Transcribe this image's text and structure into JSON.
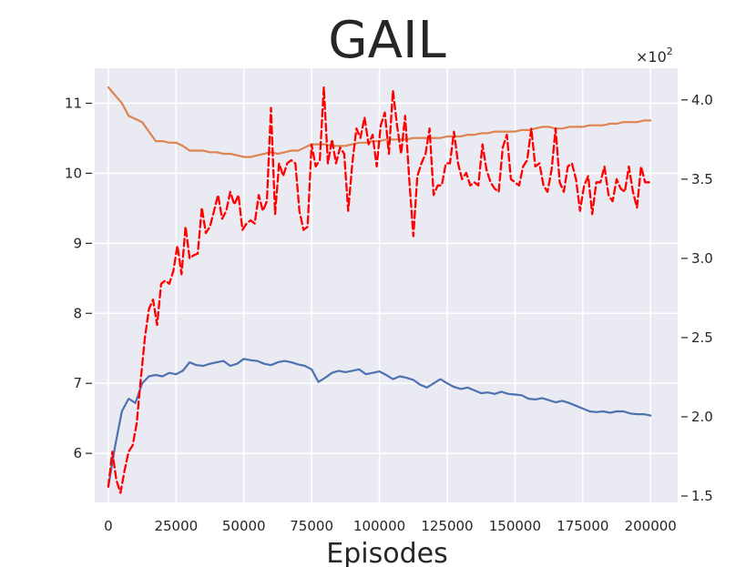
{
  "chart_data": {
    "type": "line",
    "title": "GAIL",
    "xlabel": "Episodes",
    "ylabel": "",
    "grid": true,
    "xlim": [
      -5000,
      210000
    ],
    "ylim": [
      5.3,
      11.5
    ],
    "y2lim": [
      1.46,
      4.2
    ],
    "xticks": [
      0,
      25000,
      50000,
      75000,
      100000,
      125000,
      150000,
      175000,
      200000
    ],
    "xtick_labels": [
      "0",
      "25000",
      "50000",
      "75000",
      "100000",
      "125000",
      "150000",
      "175000",
      "200000"
    ],
    "yticks": [
      6,
      7,
      8,
      9,
      10,
      11
    ],
    "ytick_labels": [
      "6",
      "7",
      "8",
      "9",
      "10",
      "11"
    ],
    "y2ticks": [
      1.5,
      2.0,
      2.5,
      3.0,
      3.5,
      4.0
    ],
    "y2tick_labels": [
      "1.5",
      "2.0",
      "2.5",
      "3.0",
      "3.5",
      "4.0"
    ],
    "y2_multiplier": {
      "base": "×10",
      "exponent": "2"
    },
    "colors": {
      "background": "#eaeaf2",
      "grid": "#ffffff",
      "blue": "#4c72b0",
      "orange": "#dd8452",
      "red": "#ff0000"
    },
    "series": [
      {
        "axis": "left",
        "color": "#4c72b0",
        "style": "solid",
        "x": [
          0,
          2500,
          5000,
          7500,
          10000,
          12500,
          15000,
          17500,
          20000,
          22500,
          25000,
          27500,
          30000,
          32500,
          35000,
          37500,
          40000,
          42500,
          45000,
          47500,
          50000,
          52500,
          55000,
          57500,
          60000,
          62500,
          65000,
          67500,
          70000,
          72500,
          75000,
          77500,
          80000,
          82500,
          85000,
          87500,
          90000,
          92500,
          95000,
          97500,
          100000,
          102500,
          105000,
          107500,
          110000,
          112500,
          115000,
          117500,
          120000,
          122500,
          125000,
          127500,
          130000,
          132500,
          135000,
          137500,
          140000,
          142500,
          145000,
          147500,
          150000,
          152500,
          155000,
          157500,
          160000,
          162500,
          165000,
          167500,
          170000,
          172500,
          175000,
          177500,
          180000,
          182500,
          185000,
          187500,
          190000,
          192500,
          195000,
          197500,
          200000
        ],
        "values": [
          5.52,
          6.1,
          6.6,
          6.78,
          6.72,
          7.0,
          7.1,
          7.12,
          7.1,
          7.15,
          7.13,
          7.18,
          7.3,
          7.26,
          7.25,
          7.28,
          7.3,
          7.32,
          7.25,
          7.28,
          7.35,
          7.33,
          7.32,
          7.28,
          7.26,
          7.3,
          7.32,
          7.3,
          7.27,
          7.25,
          7.2,
          7.02,
          7.08,
          7.15,
          7.18,
          7.16,
          7.18,
          7.2,
          7.13,
          7.15,
          7.17,
          7.12,
          7.06,
          7.1,
          7.08,
          7.05,
          6.98,
          6.94,
          7.0,
          7.06,
          7.0,
          6.95,
          6.92,
          6.94,
          6.9,
          6.86,
          6.87,
          6.85,
          6.88,
          6.85,
          6.84,
          6.83,
          6.78,
          6.77,
          6.79,
          6.76,
          6.73,
          6.75,
          6.72,
          6.68,
          6.64,
          6.6,
          6.59,
          6.6,
          6.58,
          6.6,
          6.6,
          6.57,
          6.56,
          6.56,
          6.54
        ]
      },
      {
        "axis": "right",
        "color": "#dd8452",
        "style": "solid",
        "x": [
          0,
          2500,
          5000,
          7500,
          10000,
          12500,
          15000,
          17500,
          20000,
          22500,
          25000,
          27500,
          30000,
          32500,
          35000,
          37500,
          40000,
          42500,
          45000,
          47500,
          50000,
          52500,
          55000,
          57500,
          60000,
          62500,
          65000,
          67500,
          70000,
          72500,
          75000,
          77500,
          80000,
          82500,
          85000,
          87500,
          90000,
          92500,
          95000,
          97500,
          100000,
          102500,
          105000,
          107500,
          110000,
          112500,
          115000,
          117500,
          120000,
          122500,
          125000,
          127500,
          130000,
          132500,
          135000,
          137500,
          140000,
          142500,
          145000,
          147500,
          150000,
          152500,
          155000,
          157500,
          160000,
          162500,
          165000,
          167500,
          170000,
          172500,
          175000,
          177500,
          180000,
          182500,
          185000,
          187500,
          190000,
          192500,
          195000,
          197500,
          200000
        ],
        "values": [
          4.08,
          4.03,
          3.98,
          3.9,
          3.88,
          3.86,
          3.8,
          3.74,
          3.74,
          3.73,
          3.73,
          3.71,
          3.68,
          3.68,
          3.68,
          3.67,
          3.67,
          3.66,
          3.66,
          3.65,
          3.64,
          3.64,
          3.65,
          3.66,
          3.67,
          3.66,
          3.67,
          3.68,
          3.68,
          3.7,
          3.72,
          3.72,
          3.72,
          3.71,
          3.71,
          3.71,
          3.72,
          3.73,
          3.73,
          3.74,
          3.74,
          3.75,
          3.75,
          3.75,
          3.75,
          3.76,
          3.76,
          3.76,
          3.76,
          3.76,
          3.77,
          3.77,
          3.77,
          3.78,
          3.78,
          3.79,
          3.79,
          3.8,
          3.8,
          3.8,
          3.8,
          3.81,
          3.81,
          3.82,
          3.83,
          3.83,
          3.82,
          3.82,
          3.83,
          3.83,
          3.83,
          3.84,
          3.84,
          3.84,
          3.85,
          3.85,
          3.86,
          3.86,
          3.86,
          3.87,
          3.87
        ]
      },
      {
        "axis": "right",
        "color": "#ff0000",
        "style": "dashed",
        "x": [
          0,
          1500,
          3000,
          4500,
          6000,
          7500,
          9000,
          10500,
          12000,
          13500,
          15000,
          16500,
          18000,
          19500,
          21000,
          22500,
          24000,
          25500,
          27000,
          28500,
          30000,
          31500,
          33000,
          34500,
          36000,
          37500,
          39000,
          40500,
          42000,
          43500,
          45000,
          46500,
          48000,
          49500,
          51000,
          52500,
          54000,
          55500,
          57000,
          58500,
          60000,
          61500,
          63000,
          64500,
          66000,
          67500,
          69000,
          70500,
          72000,
          73500,
          75000,
          76500,
          78000,
          79500,
          81000,
          82500,
          84000,
          85500,
          87000,
          88500,
          90000,
          91500,
          93000,
          94500,
          96000,
          97500,
          99000,
          100500,
          102000,
          103500,
          105000,
          106500,
          108000,
          109500,
          111000,
          112500,
          114000,
          115500,
          117000,
          118500,
          120000,
          121500,
          123000,
          124500,
          126000,
          127500,
          129000,
          130500,
          132000,
          133500,
          135000,
          136500,
          138000,
          139500,
          141000,
          142500,
          144000,
          145500,
          147000,
          148500,
          150000,
          151500,
          153000,
          154500,
          156000,
          157500,
          159000,
          160500,
          162000,
          163500,
          165000,
          166500,
          168000,
          169500,
          171000,
          172500,
          174000,
          175500,
          177000,
          178500,
          180000,
          181500,
          183000,
          184500,
          186000,
          187500,
          189000,
          190500,
          192000,
          193500,
          195000,
          196500,
          198000,
          199500
        ],
        "values": [
          1.56,
          1.78,
          1.6,
          1.52,
          1.66,
          1.78,
          1.82,
          1.96,
          2.24,
          2.5,
          2.68,
          2.74,
          2.58,
          2.84,
          2.86,
          2.84,
          2.92,
          3.08,
          2.9,
          3.2,
          3.0,
          3.02,
          3.03,
          3.32,
          3.16,
          3.2,
          3.3,
          3.4,
          3.25,
          3.3,
          3.42,
          3.34,
          3.4,
          3.18,
          3.22,
          3.24,
          3.22,
          3.4,
          3.3,
          3.36,
          3.95,
          3.28,
          3.6,
          3.52,
          3.6,
          3.62,
          3.6,
          3.3,
          3.18,
          3.2,
          3.72,
          3.58,
          3.62,
          4.08,
          3.6,
          3.75,
          3.6,
          3.7,
          3.66,
          3.3,
          3.6,
          3.82,
          3.76,
          3.89,
          3.72,
          3.78,
          3.58,
          3.84,
          3.92,
          3.66,
          4.06,
          3.84,
          3.66,
          3.9,
          3.5,
          3.14,
          3.52,
          3.6,
          3.66,
          3.82,
          3.4,
          3.46,
          3.46,
          3.6,
          3.6,
          3.8,
          3.6,
          3.5,
          3.54,
          3.46,
          3.48,
          3.46,
          3.72,
          3.56,
          3.48,
          3.44,
          3.42,
          3.7,
          3.78,
          3.5,
          3.48,
          3.46,
          3.58,
          3.62,
          3.82,
          3.58,
          3.6,
          3.46,
          3.42,
          3.56,
          3.82,
          3.48,
          3.42,
          3.58,
          3.6,
          3.5,
          3.3,
          3.46,
          3.52,
          3.28,
          3.48,
          3.48,
          3.58,
          3.4,
          3.36,
          3.5,
          3.44,
          3.42,
          3.58,
          3.42,
          3.32,
          3.58,
          3.48,
          3.48
        ]
      }
    ]
  }
}
